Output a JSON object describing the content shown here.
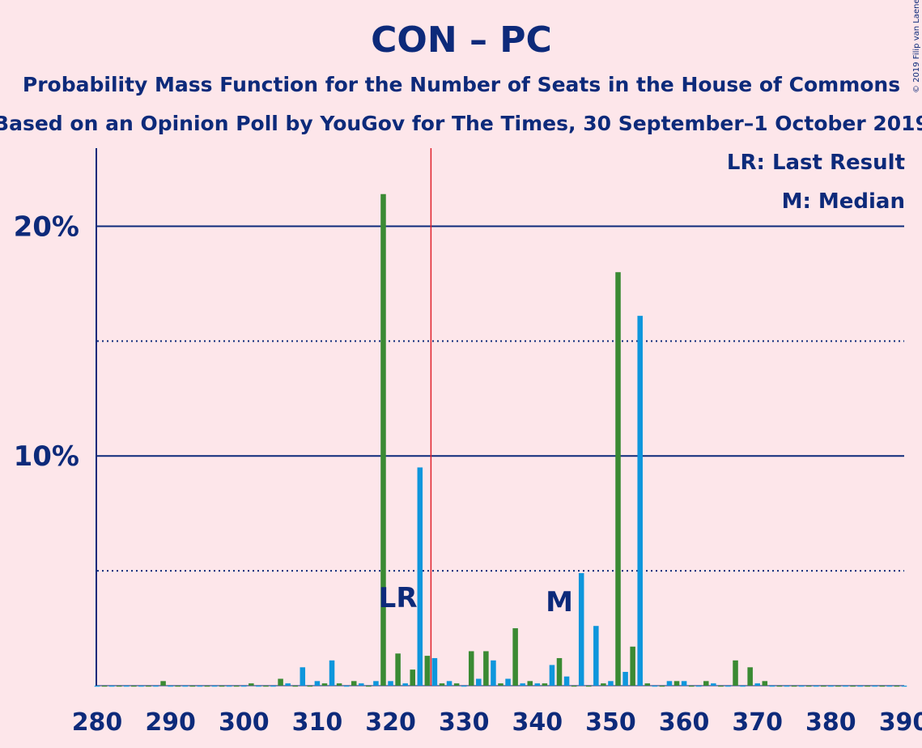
{
  "chart_data": {
    "type": "bar",
    "title": "CON – PC",
    "subtitle": "Probability Mass Function for the Number of Seats in the House of Commons",
    "subtitle2": "Based on an Opinion Poll by YouGov for The Times, 30 September–1 October 2019",
    "credit": "© 2019 Filip van Laenen",
    "legend": [
      "LR: Last Result",
      "M: Median"
    ],
    "x": [
      280,
      281,
      282,
      283,
      284,
      285,
      286,
      287,
      288,
      289,
      290,
      291,
      292,
      293,
      294,
      295,
      296,
      297,
      298,
      299,
      300,
      301,
      302,
      303,
      304,
      305,
      306,
      307,
      308,
      309,
      310,
      311,
      312,
      313,
      314,
      315,
      316,
      317,
      318,
      319,
      320,
      321,
      322,
      323,
      324,
      325,
      326,
      327,
      328,
      329,
      330,
      331,
      332,
      333,
      334,
      335,
      336,
      337,
      338,
      339,
      340,
      341,
      342,
      343,
      344,
      345,
      346,
      347,
      348,
      349,
      350,
      351,
      352,
      353,
      354,
      355,
      356,
      357,
      358,
      359,
      360,
      361,
      362,
      363,
      364,
      365,
      366,
      367,
      368,
      369,
      370,
      371,
      372,
      373,
      374,
      375,
      376,
      377,
      378,
      379,
      380,
      381,
      382,
      383,
      384,
      385,
      386,
      387,
      388,
      389,
      390
    ],
    "values": [
      0,
      0,
      0,
      0,
      0,
      0,
      0,
      0,
      0,
      0.2,
      0,
      0,
      0,
      0,
      0,
      0,
      0,
      0,
      0,
      0,
      0,
      0.1,
      0,
      0,
      0,
      0.3,
      0.1,
      0,
      0.8,
      0,
      0.2,
      0.1,
      1.1,
      0.1,
      0,
      0.2,
      0.1,
      0,
      0.2,
      21.4,
      0.2,
      1.4,
      0.1,
      0.7,
      9.5,
      1.3,
      1.2,
      0.1,
      0.2,
      0.1,
      0,
      1.5,
      0.3,
      1.5,
      1.1,
      0.1,
      0.3,
      2.5,
      0.1,
      0.2,
      0.1,
      0.1,
      0.9,
      1.2,
      0.4,
      0,
      4.9,
      0,
      2.6,
      0.1,
      0.2,
      18.0,
      0.6,
      1.7,
      16.1,
      0.1,
      0,
      0,
      0.2,
      0.2,
      0.2,
      0,
      0,
      0.2,
      0.1,
      0,
      0,
      1.1,
      0,
      0.8,
      0.1,
      0.2,
      0,
      0,
      0,
      0,
      0,
      0,
      0,
      0,
      0,
      0,
      0,
      0,
      0,
      0,
      0,
      0,
      0,
      0,
      0
    ],
    "colors": [
      "#0e96dc",
      "#3a8a33"
    ],
    "xlim": [
      280,
      390
    ],
    "xticks": [
      280,
      290,
      300,
      310,
      320,
      330,
      340,
      350,
      360,
      370,
      380,
      390
    ],
    "ylim": [
      0,
      23.4
    ],
    "yticks": [
      {
        "value": 10,
        "label": "10%"
      },
      {
        "value": 20,
        "label": "20%"
      }
    ],
    "minor_yticks": [
      5,
      15
    ],
    "majority_line": 325.5,
    "annotations": [
      {
        "text": "LR",
        "x": 321
      },
      {
        "text": "M",
        "x": 343
      }
    ]
  }
}
